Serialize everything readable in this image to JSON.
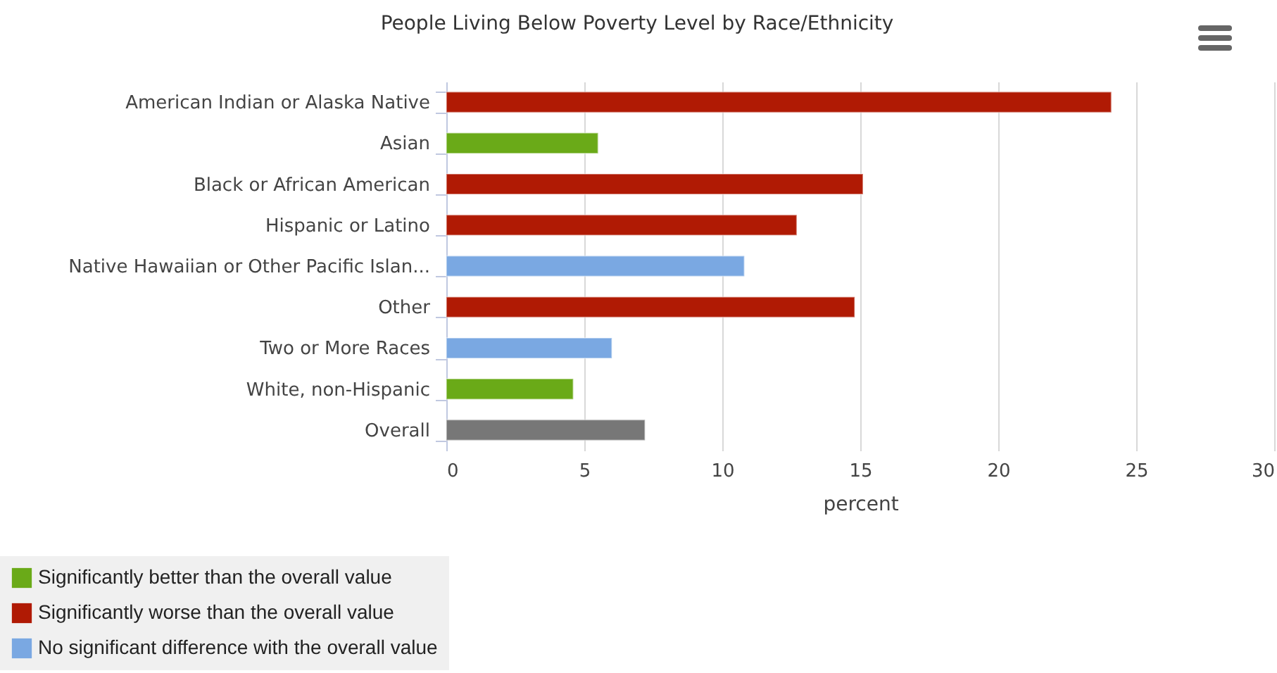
{
  "chart_data": {
    "type": "bar",
    "orientation": "horizontal",
    "title": "People Living Below Poverty Level by Race/Ethnicity",
    "xlabel": "percent",
    "categories": [
      "American Indian or Alaska Native",
      "Asian",
      "Black or African American",
      "Hispanic or Latino",
      "Native Hawaiian or Other Pacific Islan...",
      "Other",
      "Two or More Races",
      "White, non-Hispanic",
      "Overall"
    ],
    "series": [
      {
        "name": "Significantly better than the overall value",
        "color": "#6aaa18",
        "values": [
          null,
          5.5,
          null,
          null,
          null,
          null,
          null,
          4.6,
          null
        ]
      },
      {
        "name": "Significantly worse than the overall value",
        "color": "#b01a04",
        "values": [
          24.1,
          null,
          15.1,
          12.7,
          null,
          14.8,
          null,
          null,
          null
        ]
      },
      {
        "name": "No significant difference with the overall value",
        "color": "#7aa8e2",
        "values": [
          null,
          null,
          null,
          null,
          10.8,
          null,
          6.0,
          null,
          null
        ]
      },
      {
        "color": "#777777",
        "values": [
          null,
          null,
          null,
          null,
          null,
          null,
          null,
          null,
          7.2
        ]
      }
    ],
    "xlim": [
      0,
      30
    ],
    "xticks": [
      0,
      5,
      10,
      15,
      20,
      25,
      30
    ],
    "grid": "x",
    "legend": "bottom left"
  }
}
